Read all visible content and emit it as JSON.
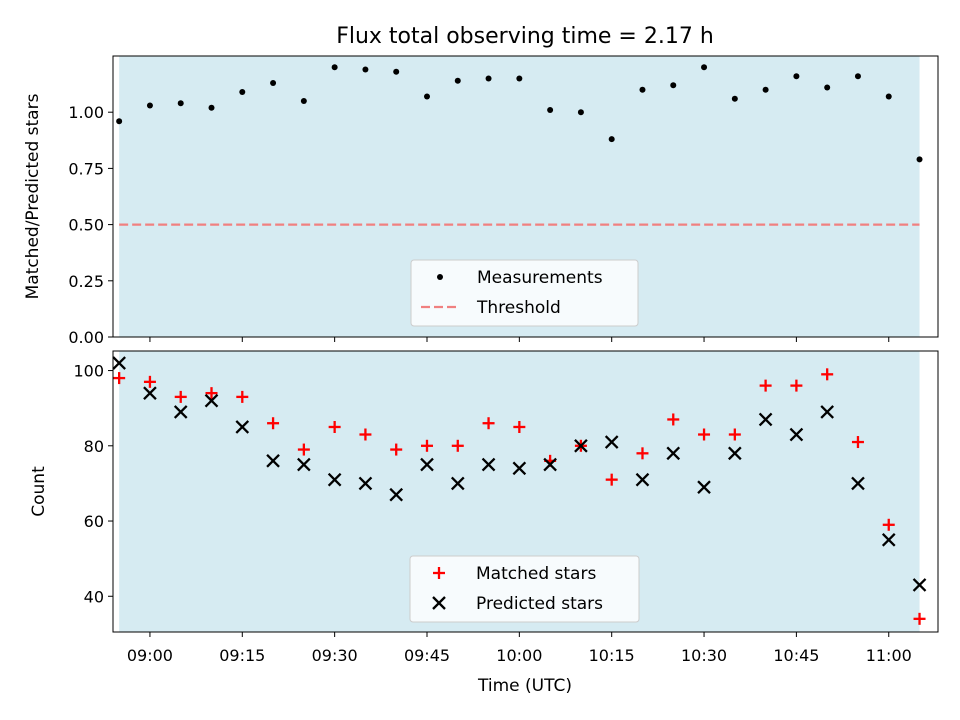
{
  "chart_data": [
    {
      "type": "scatter",
      "title": "Flux total observing time = 2.17 h",
      "xlabel": "",
      "ylabel": "Matched/Predicted stars",
      "xlim": [
        "08:54",
        "11:08"
      ],
      "ylim": [
        0.0,
        1.25
      ],
      "yticks": [
        "0.00",
        "0.25",
        "0.50",
        "0.75",
        "1.00"
      ],
      "xticks": [
        "09:00",
        "09:15",
        "09:30",
        "09:45",
        "10:00",
        "10:15",
        "10:30",
        "10:45",
        "11:00"
      ],
      "grid": false,
      "legend_position": "lower-center",
      "shaded_interval": [
        "08:55",
        "11:05"
      ],
      "shade_color": "#add8e6",
      "series": [
        {
          "name": "Measurements",
          "marker": "dot",
          "color": "#000000",
          "x": [
            "08:55",
            "09:00",
            "09:05",
            "09:10",
            "09:15",
            "09:20",
            "09:25",
            "09:30",
            "09:35",
            "09:40",
            "09:45",
            "09:50",
            "09:55",
            "10:00",
            "10:05",
            "10:10",
            "10:15",
            "10:20",
            "10:25",
            "10:30",
            "10:35",
            "10:40",
            "10:45",
            "10:50",
            "10:55",
            "11:00",
            "11:05"
          ],
          "y": [
            0.96,
            1.03,
            1.04,
            1.02,
            1.09,
            1.13,
            1.05,
            1.2,
            1.19,
            1.18,
            1.07,
            1.14,
            1.15,
            1.15,
            1.01,
            1.0,
            0.88,
            1.1,
            1.12,
            1.2,
            1.06,
            1.1,
            1.16,
            1.11,
            1.16,
            1.07,
            0.79
          ]
        },
        {
          "name": "Threshold",
          "marker": "dashed-line",
          "color": "#f08080",
          "y": 0.5
        }
      ]
    },
    {
      "type": "scatter",
      "title": "",
      "xlabel": "Time (UTC)",
      "ylabel": "Count",
      "xlim": [
        "08:54",
        "11:08"
      ],
      "ylim": [
        30.5,
        105.2
      ],
      "yticks": [
        "40",
        "60",
        "80",
        "100"
      ],
      "xticks": [
        "09:00",
        "09:15",
        "09:30",
        "09:45",
        "10:00",
        "10:15",
        "10:30",
        "10:45",
        "11:00"
      ],
      "grid": false,
      "legend_position": "lower-center",
      "shaded_interval": [
        "08:55",
        "11:05"
      ],
      "shade_color": "#add8e6",
      "series": [
        {
          "name": "Matched stars",
          "marker": "plus",
          "color": "#ff0000",
          "x": [
            "08:55",
            "09:00",
            "09:05",
            "09:10",
            "09:15",
            "09:20",
            "09:25",
            "09:30",
            "09:35",
            "09:40",
            "09:45",
            "09:50",
            "09:55",
            "10:00",
            "10:05",
            "10:10",
            "10:15",
            "10:20",
            "10:25",
            "10:30",
            "10:35",
            "10:40",
            "10:45",
            "10:50",
            "10:55",
            "11:00",
            "11:05"
          ],
          "y": [
            98,
            97,
            93,
            94,
            93,
            86,
            79,
            85,
            83,
            79,
            80,
            80,
            86,
            85,
            76,
            80,
            71,
            78,
            87,
            83,
            83,
            96,
            96,
            99,
            81,
            59,
            34
          ]
        },
        {
          "name": "Predicted stars",
          "marker": "x",
          "color": "#000000",
          "x": [
            "08:55",
            "09:00",
            "09:05",
            "09:10",
            "09:15",
            "09:20",
            "09:25",
            "09:30",
            "09:35",
            "09:40",
            "09:45",
            "09:50",
            "09:55",
            "10:00",
            "10:05",
            "10:10",
            "10:15",
            "10:20",
            "10:25",
            "10:30",
            "10:35",
            "10:40",
            "10:45",
            "10:50",
            "10:55",
            "11:00",
            "11:05"
          ],
          "y": [
            102,
            94,
            89,
            92,
            85,
            76,
            75,
            71,
            70,
            67,
            75,
            70,
            75,
            74,
            75,
            80,
            81,
            71,
            78,
            69,
            78,
            87,
            83,
            89,
            70,
            55,
            43
          ]
        }
      ]
    }
  ]
}
